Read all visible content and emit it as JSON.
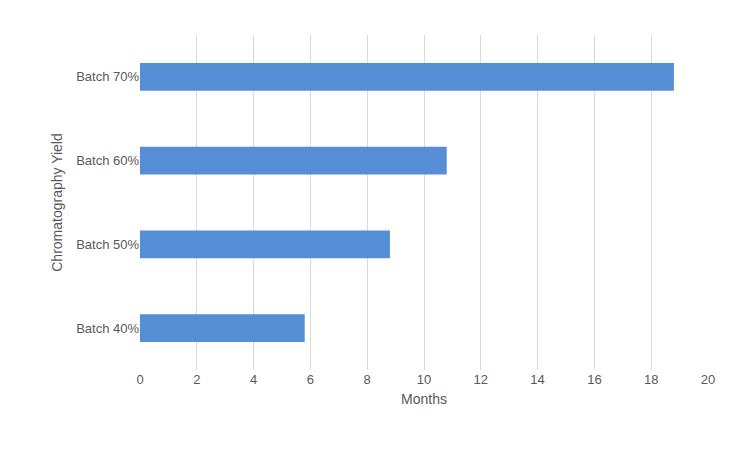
{
  "chart_data": {
    "type": "bar",
    "orientation": "horizontal",
    "xlabel": "Months",
    "ylabel": "Chromatography Yield",
    "categories": [
      "Batch 40%",
      "Batch 50%",
      "Batch 60%",
      "Batch 70%"
    ],
    "values": [
      5.8,
      8.8,
      10.8,
      18.8
    ],
    "color": "#558ed5",
    "xlim": [
      0,
      20
    ],
    "xticks": [
      0,
      2,
      4,
      6,
      8,
      10,
      12,
      14,
      16,
      18,
      20
    ],
    "grid": true
  }
}
